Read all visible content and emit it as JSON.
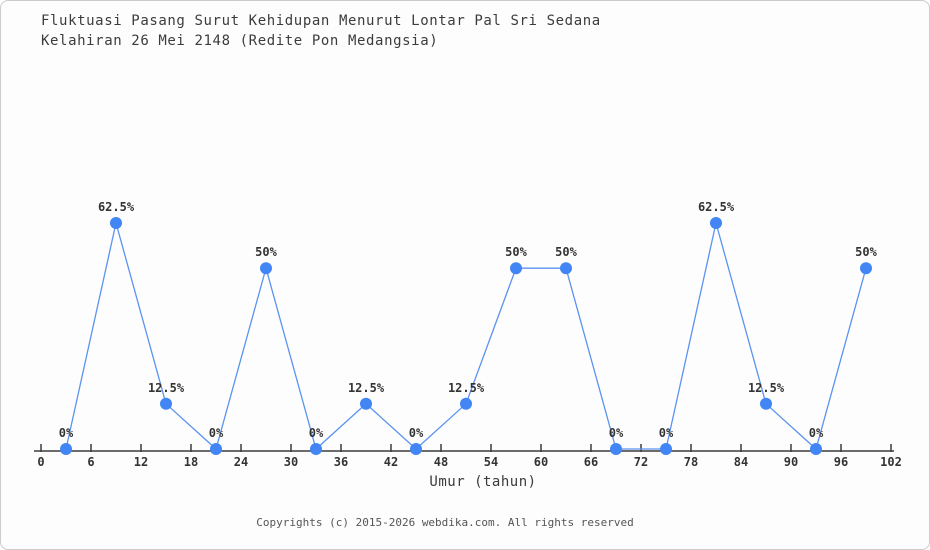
{
  "page": {
    "title_line1": "Fluktuasi Pasang Surut Kehidupan Menurut Lontar Pal Sri Sedana",
    "title_line2": "Kelahiran 26 Mei 2148 (Redite Pon Medangsia)",
    "footer": "Copyrights (c) 2015-2026 webdika.com. All rights reserved"
  },
  "chart_data": {
    "type": "line",
    "title": "Fluktuasi Pasang Surut Kehidupan Menurut Lontar Pal Sri Sedana Kelahiran 26 Mei 2148 (Redite Pon Medangsia)",
    "xlabel": "Umur (tahun)",
    "ylabel": "",
    "x": [
      3,
      9,
      15,
      21,
      27,
      33,
      39,
      45,
      51,
      57,
      63,
      69,
      75,
      81,
      87,
      93,
      99
    ],
    "values": [
      0,
      62.5,
      12.5,
      0,
      50,
      0,
      12.5,
      0,
      12.5,
      50,
      50,
      0,
      0,
      62.5,
      12.5,
      0,
      50
    ],
    "point_labels": [
      "0%",
      "62.5%",
      "12.5%",
      "0%",
      "50%",
      "0%",
      "12.5%",
      "0%",
      "12.5%",
      "50%",
      "50%",
      "0%",
      "0%",
      "62.5%",
      "12.5%",
      "0%",
      "50%"
    ],
    "x_ticks": [
      0,
      6,
      12,
      18,
      24,
      30,
      36,
      42,
      48,
      54,
      60,
      66,
      72,
      78,
      84,
      90,
      96,
      102
    ],
    "xlim": [
      0,
      102
    ],
    "ylim": [
      0,
      70
    ],
    "grid": false,
    "legend": "none",
    "marker_color": "#4285f4",
    "line_color": "#5b93f0",
    "axis_color": "#3c3c3c",
    "label_color": "#333333"
  }
}
